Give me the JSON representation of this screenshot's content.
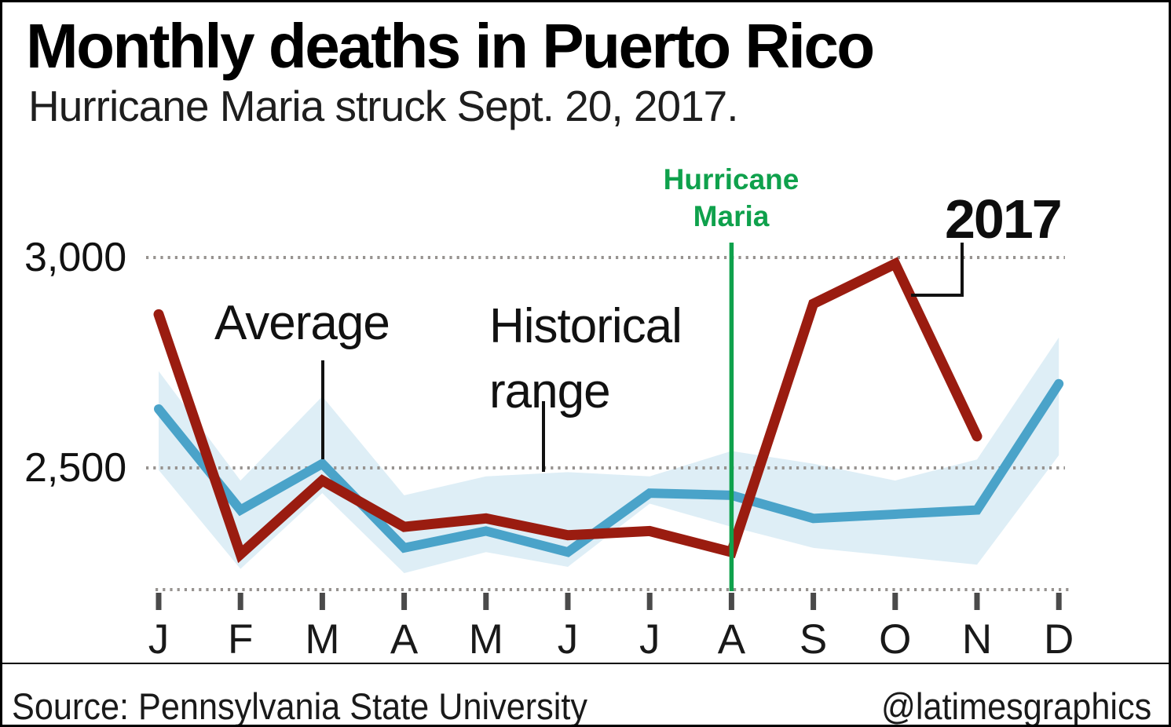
{
  "title": "Monthly deaths in Puerto Rico",
  "subtitle": "Hurricane Maria struck Sept. 20, 2017.",
  "annotations": {
    "average_label": "Average",
    "historical_range_label": [
      "Historical",
      "range"
    ],
    "hurricane_maria_label": [
      "Hurricane",
      "Maria"
    ],
    "year_label": "2017"
  },
  "y_axis": {
    "labels": [
      "3,000",
      "2,500"
    ],
    "gridline_values": [
      3000,
      2500
    ]
  },
  "footer": {
    "source": "Source: Pennsylvania State University",
    "credit": "@latimesgraphics"
  },
  "colors": {
    "line_2017": "#9a1c10",
    "line_average": "#4aa3c9",
    "band": "#d8ebf4",
    "event_line": "#0fa14c",
    "gridline": "#979390",
    "tick": "#4a4a4a",
    "pointer": "#111111"
  },
  "chart_data": {
    "type": "line",
    "title": "Monthly deaths in Puerto Rico",
    "categories": [
      "J",
      "F",
      "M",
      "A",
      "M",
      "J",
      "J",
      "A",
      "S",
      "O",
      "N",
      "D"
    ],
    "series": [
      {
        "name": "2017",
        "color": "#9a1c10",
        "values": [
          2865,
          2295,
          2470,
          2360,
          2380,
          2340,
          2350,
          2300,
          2890,
          2985,
          2575,
          null
        ]
      },
      {
        "name": "Average",
        "color": "#4aa3c9",
        "values": [
          2640,
          2400,
          2510,
          2310,
          2350,
          2300,
          2440,
          2435,
          2380,
          2390,
          2400,
          2700
        ]
      }
    ],
    "band": {
      "name": "Historical range",
      "color": "#d8ebf4",
      "top": [
        2730,
        2470,
        2670,
        2435,
        2480,
        2490,
        2480,
        2540,
        2510,
        2470,
        2520,
        2810
      ],
      "bottom": [
        2495,
        2260,
        2440,
        2250,
        2300,
        2265,
        2415,
        2360,
        2310,
        2290,
        2270,
        2530
      ]
    },
    "event_line": {
      "label": "Hurricane Maria",
      "month_index": 7,
      "color": "#0fa14c"
    },
    "ylabel": "",
    "xlabel": "",
    "ylim": [
      2200,
      3060
    ],
    "grid": "dotted horizontal at 2500 and 3000, dotted baseline under axis",
    "legend_position": "inline annotations"
  }
}
